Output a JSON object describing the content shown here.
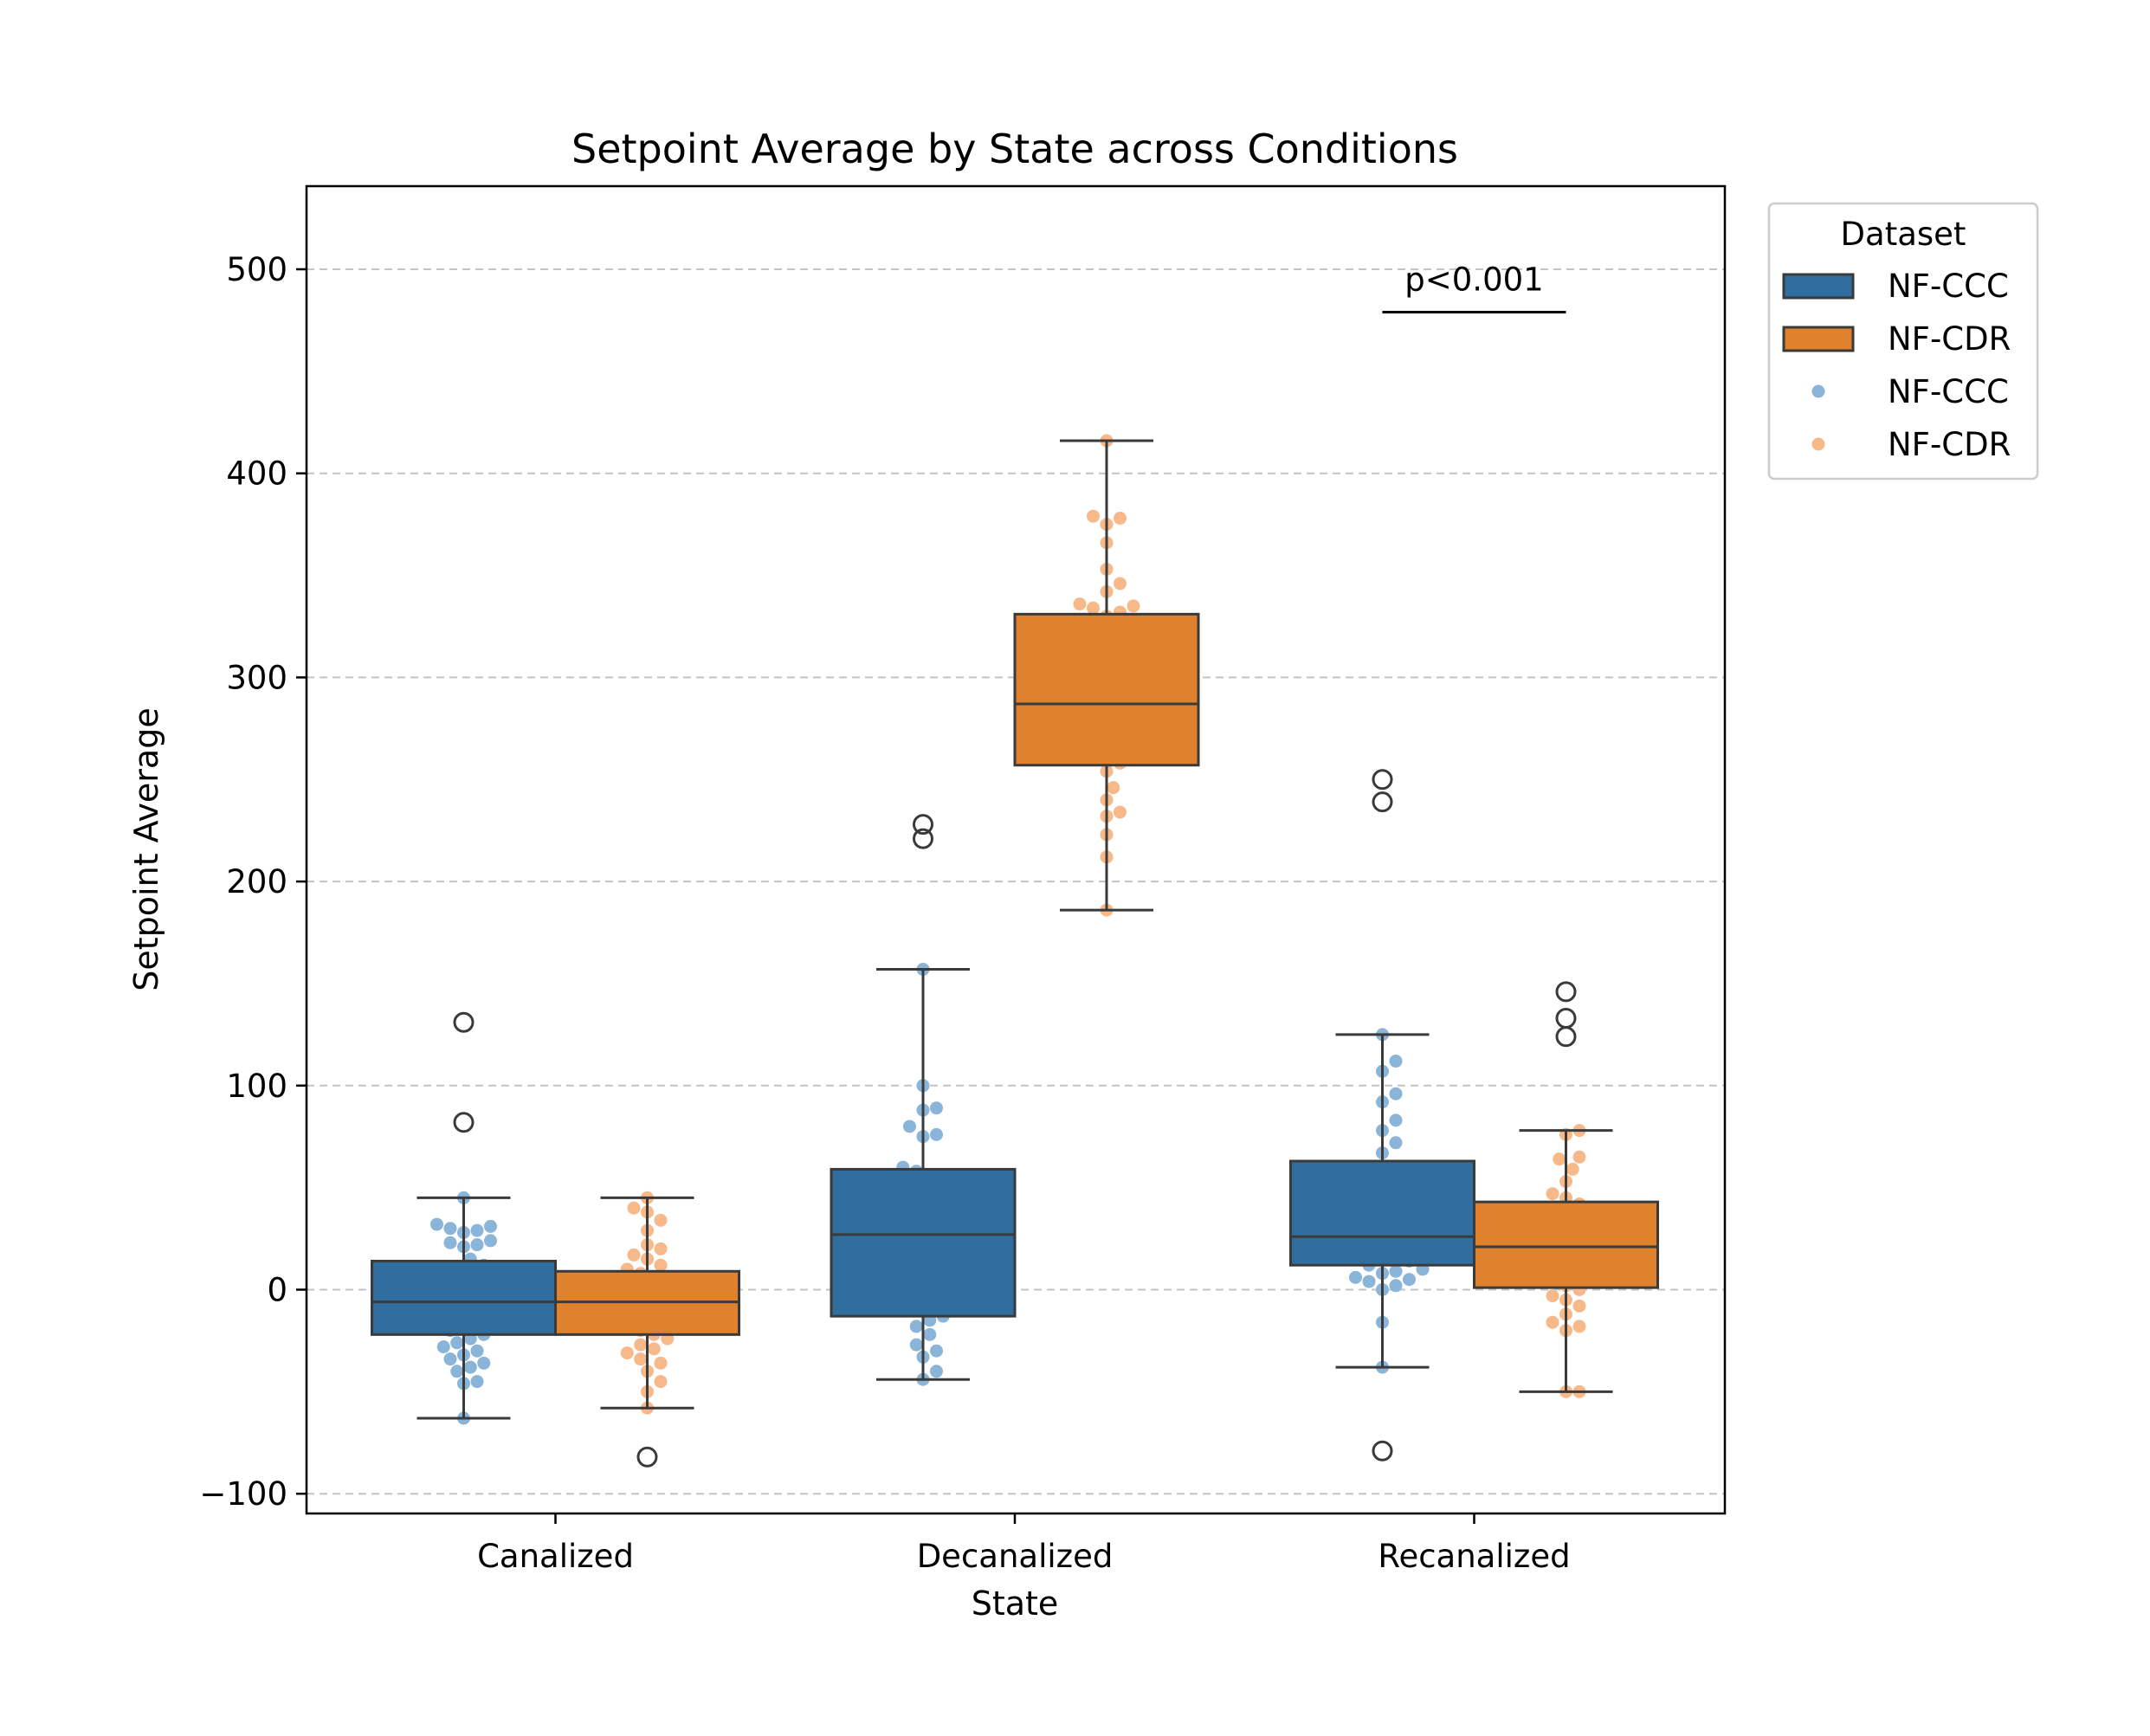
{
  "chart_data": {
    "type": "box",
    "title": "Setpoint Average by State across Conditions",
    "xlabel": "State",
    "ylabel": "Setpoint Average",
    "categories": [
      "Canalized",
      "Decanalized",
      "Recanalized"
    ],
    "ylim": [
      -110,
      540
    ],
    "yticks": [
      -100,
      0,
      100,
      200,
      300,
      400,
      500
    ],
    "ytick_labels": [
      "−100",
      "0",
      "100",
      "200",
      "300",
      "400",
      "500"
    ],
    "grid": "y-dashed",
    "legend": {
      "title": "Dataset",
      "position": "outside-top-right",
      "entries": [
        {
          "label": "NF-CCC",
          "kind": "box",
          "color": "#2f6e9f"
        },
        {
          "label": "NF-CDR",
          "kind": "box",
          "color": "#e0812d"
        },
        {
          "label": "NF-CCC",
          "kind": "point",
          "color": "#8ab4d8"
        },
        {
          "label": "NF-CDR",
          "kind": "point",
          "color": "#f7b98a"
        }
      ]
    },
    "colors": {
      "NF-CCC_box": "#2f6e9f",
      "NF-CDR_box": "#e0812d",
      "NF-CCC_point": "#8ab4d8",
      "NF-CDR_point": "#f7b98a",
      "edge": "#3a3a3a"
    },
    "series": [
      {
        "name": "NF-CCC",
        "boxes": [
          {
            "category": "Canalized",
            "q1": -22,
            "median": -6,
            "q3": 14,
            "whisker_low": -63,
            "whisker_high": 45,
            "outliers": [
              131,
              82
            ],
            "points": [
              45,
              32,
              31,
              30,
              29,
              28,
              24,
              23,
              22,
              21,
              15,
              12,
              10,
              8,
              5,
              3,
              1,
              -2,
              -4,
              -6,
              -8,
              -10,
              -12,
              -15,
              -18,
              -20,
              -22,
              -24,
              -26,
              -28,
              -30,
              -32,
              -34,
              -36,
              -38,
              -40,
              -45,
              -46,
              -63
            ]
          },
          {
            "category": "Decanalized",
            "q1": -13,
            "median": 27,
            "q3": 59,
            "whisker_low": -44,
            "whisker_high": 157,
            "outliers": [
              228,
              221
            ],
            "points": [
              157,
              100,
              89,
              88,
              80,
              76,
              75,
              60,
              58,
              55,
              52,
              48,
              45,
              40,
              38,
              35,
              30,
              28,
              25,
              22,
              20,
              15,
              12,
              10,
              6,
              2,
              -2,
              -6,
              -10,
              -13,
              -15,
              -18,
              -22,
              -27,
              -30,
              -33,
              -40,
              -44
            ]
          },
          {
            "category": "Recanalized",
            "q1": 12,
            "median": 26,
            "q3": 63,
            "whisker_low": -38,
            "whisker_high": 125,
            "outliers": [
              250,
              239,
              -79
            ],
            "points": [
              125,
              112,
              107,
              96,
              92,
              83,
              78,
              72,
              67,
              60,
              55,
              50,
              46,
              42,
              38,
              35,
              32,
              28,
              25,
              22,
              20,
              18,
              16,
              14,
              12,
              10,
              9,
              8,
              6,
              5,
              4,
              2,
              0,
              -16,
              -38
            ]
          }
        ]
      },
      {
        "name": "NF-CDR",
        "boxes": [
          {
            "category": "Canalized",
            "q1": -22,
            "median": -6,
            "q3": 9,
            "whisker_low": -58,
            "whisker_high": 45,
            "outliers": [
              -82
            ],
            "points": [
              45,
              40,
              38,
              34,
              29,
              22,
              20,
              17,
              15,
              12,
              10,
              8,
              6,
              4,
              2,
              0,
              -2,
              -4,
              -6,
              -8,
              -10,
              -12,
              -14,
              -16,
              -18,
              -20,
              -22,
              -24,
              -27,
              -29,
              -31,
              -34,
              -36,
              -40,
              -45,
              -50,
              -58
            ]
          },
          {
            "category": "Decanalized",
            "q1": 257,
            "median": 287,
            "q3": 331,
            "whisker_low": 186,
            "whisker_high": 416,
            "outliers": [],
            "points": [
              416,
              379,
              378,
              375,
              366,
              353,
              346,
              342,
              336,
              335,
              334,
              332,
              330,
              320,
              314,
              310,
              305,
              300,
              297,
              295,
              290,
              287,
              284,
              280,
              276,
              272,
              268,
              265,
              262,
              260,
              258,
              254,
              246,
              240,
              234,
              232,
              223,
              212,
              186
            ]
          },
          {
            "category": "Recanalized",
            "q1": 1,
            "median": 21,
            "q3": 43,
            "whisker_low": -50,
            "whisker_high": 78,
            "outliers": [
              146,
              133,
              124
            ],
            "points": [
              78,
              76,
              65,
              64,
              59,
              53,
              47,
              45,
              42,
              40,
              38,
              35,
              32,
              30,
              28,
              26,
              24,
              22,
              20,
              18,
              16,
              14,
              12,
              10,
              8,
              6,
              4,
              2,
              0,
              -3,
              -5,
              -8,
              -12,
              -16,
              -18,
              -20,
              -50,
              -50
            ]
          }
        ]
      }
    ],
    "annotations": [
      {
        "text": "p<0.001",
        "category": "Recanalized",
        "y": 479
      }
    ]
  }
}
